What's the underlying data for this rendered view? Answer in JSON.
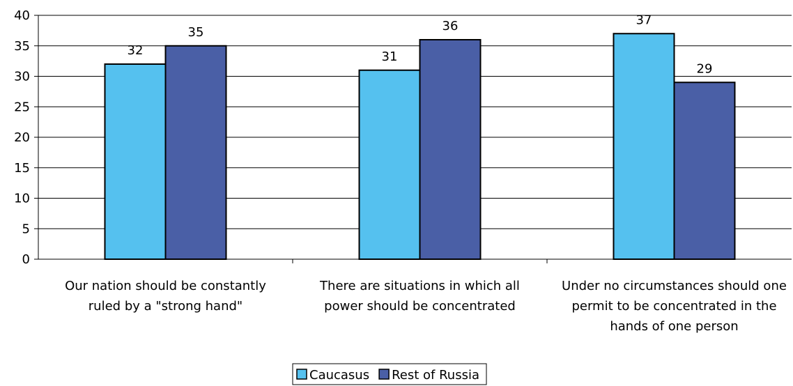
{
  "chart_data": {
    "type": "bar",
    "categories": [
      [
        "Our nation should be constantly",
        "ruled by a \"strong hand\""
      ],
      [
        "There are situations in which all",
        "power should be concentrated"
      ],
      [
        "Under no circumstances should one",
        "permit to be concentrated in the",
        "hands of one person"
      ]
    ],
    "series": [
      {
        "name": "Caucasus",
        "values": [
          32,
          31,
          37
        ],
        "color": "#55c1ef"
      },
      {
        "name": "Rest of Russia",
        "values": [
          35,
          36,
          29
        ],
        "color": "#4a5fa6"
      }
    ],
    "ylim": [
      0,
      40
    ],
    "yticks": [
      0,
      5,
      10,
      15,
      20,
      25,
      30,
      35,
      40
    ],
    "grid": true,
    "data_labels": true,
    "legend": "bottom-center"
  }
}
